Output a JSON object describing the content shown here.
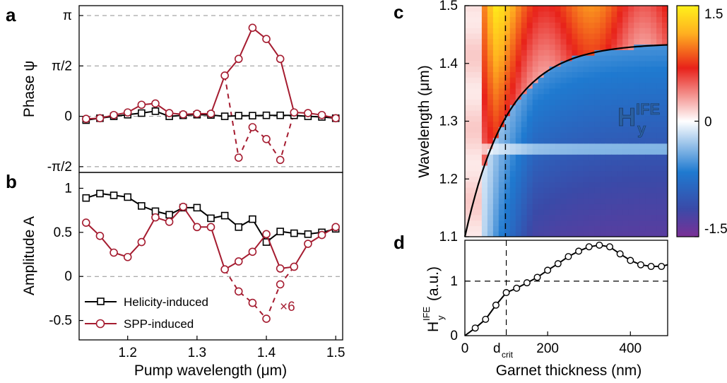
{
  "colors": {
    "helicity": "#000000",
    "spp": "#a51c30",
    "grid": "#909090"
  },
  "chart_data": [
    {
      "panel": "a",
      "type": "line",
      "ylabel": "Phase ψ",
      "y_ticks": [
        "π",
        "π/2",
        "0",
        "-π/2"
      ],
      "y_tick_values": [
        3.1416,
        1.5708,
        0,
        -1.5708
      ],
      "ylim": [
        -1.75,
        3.45
      ],
      "xlim": [
        1.13,
        1.51
      ],
      "series": [
        {
          "name": "Helicity-induced",
          "marker": "square",
          "x": [
            1.14,
            1.16,
            1.18,
            1.2,
            1.22,
            1.24,
            1.26,
            1.28,
            1.3,
            1.32,
            1.34,
            1.36,
            1.38,
            1.4,
            1.42,
            1.44,
            1.46,
            1.48,
            1.5
          ],
          "y": [
            -0.12,
            -0.06,
            0.0,
            0.05,
            0.1,
            0.16,
            0.0,
            0.03,
            0.05,
            0.04,
            0.0,
            0.02,
            0.02,
            0.03,
            0.03,
            0.03,
            0.0,
            -0.02,
            -0.06
          ]
        },
        {
          "name": "SPP-induced",
          "marker": "circle",
          "x": [
            1.14,
            1.16,
            1.18,
            1.2,
            1.22,
            1.24,
            1.26,
            1.28,
            1.3,
            1.32,
            1.34,
            1.36,
            1.38,
            1.4,
            1.42,
            1.44,
            1.46,
            1.48,
            1.5
          ],
          "y": [
            -0.08,
            -0.06,
            0.04,
            0.12,
            0.36,
            0.4,
            0.1,
            0.06,
            0.08,
            0.08,
            1.27,
            1.79,
            2.76,
            2.41,
            1.79,
            0.12,
            0.1,
            0.04,
            -0.06
          ]
        },
        {
          "name": "",
          "style": "dashed-branch",
          "x": [
            1.34,
            1.36,
            1.38,
            1.4,
            1.42,
            1.44
          ],
          "y": [
            1.27,
            -1.29,
            -0.34,
            -0.71,
            -1.36,
            0.12
          ]
        }
      ]
    },
    {
      "panel": "b",
      "type": "line",
      "ylabel": "Amplitude A",
      "y_ticks": [
        "1",
        "0.5",
        "0",
        "-0.5"
      ],
      "y_tick_values": [
        1,
        0.5,
        0,
        -0.5
      ],
      "ylim": [
        -0.72,
        1.18
      ],
      "xlabel": "Pump wavelength (μm)",
      "x_ticks": [
        "1.2",
        "1.3",
        "1.4",
        "1.5"
      ],
      "x_tick_values": [
        1.2,
        1.3,
        1.4,
        1.5
      ],
      "xlim": [
        1.13,
        1.51
      ],
      "annotation": "×6",
      "series": [
        {
          "name": "Helicity-induced",
          "marker": "square",
          "x": [
            1.14,
            1.16,
            1.18,
            1.2,
            1.22,
            1.24,
            1.26,
            1.28,
            1.3,
            1.32,
            1.34,
            1.36,
            1.38,
            1.4,
            1.42,
            1.44,
            1.46,
            1.48,
            1.5
          ],
          "y": [
            0.89,
            0.94,
            0.92,
            0.9,
            0.8,
            0.74,
            0.7,
            0.78,
            0.78,
            0.66,
            0.69,
            0.56,
            0.65,
            0.39,
            0.51,
            0.49,
            0.48,
            0.5,
            0.54
          ]
        },
        {
          "name": "SPP-induced",
          "marker": "circle",
          "x": [
            1.14,
            1.16,
            1.18,
            1.2,
            1.22,
            1.24,
            1.26,
            1.28,
            1.3,
            1.32,
            1.34,
            1.36,
            1.38,
            1.4,
            1.42,
            1.44,
            1.46,
            1.48,
            1.5
          ],
          "y": [
            0.61,
            0.46,
            0.27,
            0.22,
            0.39,
            0.67,
            0.62,
            0.79,
            0.56,
            0.56,
            0.08,
            0.17,
            0.28,
            0.48,
            0.09,
            0.11,
            0.37,
            0.47,
            0.56
          ]
        },
        {
          "name": "",
          "style": "dashed-branch",
          "x": [
            1.34,
            1.36,
            1.38,
            1.4,
            1.42,
            1.44
          ],
          "y": [
            0.08,
            -0.17,
            -0.3,
            -0.48,
            -0.09,
            0.11
          ]
        }
      ],
      "legend": [
        "Helicity-induced",
        "SPP-induced"
      ]
    },
    {
      "panel": "c",
      "type": "heatmap",
      "ylabel": "Wavelength (μm)",
      "y_ticks": [
        "1.1",
        "1.2",
        "1.3",
        "1.4",
        "1.5"
      ],
      "y_tick_values": [
        1.1,
        1.2,
        1.3,
        1.4,
        1.5
      ],
      "ylim": [
        1.1,
        1.5
      ],
      "xlim": [
        0,
        500
      ],
      "colorbar_ticks": [
        "1.5",
        "0",
        "-1.5"
      ],
      "colorbar_values": [
        1.5,
        0,
        -1.5
      ],
      "label_main": "H",
      "label_sup": "IFE",
      "label_sub": "y",
      "d_crit": 100
    },
    {
      "panel": "d",
      "type": "line",
      "ylabel_main": "H",
      "ylabel_sup": "IFE",
      "ylabel_sub": "y",
      "ylabel_unit": "(a.u.)",
      "y_ticks": [
        "1",
        "0"
      ],
      "y_tick_values": [
        1,
        0
      ],
      "ylim": [
        0,
        1.75
      ],
      "xlabel": "Garnet thickness (nm)",
      "x_ticks": [
        "0",
        "200",
        "400"
      ],
      "x_tick_values": [
        0,
        200,
        400
      ],
      "xlim": [
        0,
        490
      ],
      "dcrit_main": "d",
      "dcrit_sub": "crit",
      "series": [
        {
          "name": "",
          "x": [
            0,
            25,
            50,
            75,
            100,
            125,
            150,
            175,
            200,
            225,
            250,
            275,
            300,
            325,
            350,
            375,
            400,
            425,
            450,
            475,
            490
          ],
          "y": [
            0,
            0.14,
            0.3,
            0.56,
            0.79,
            0.87,
            0.97,
            1.07,
            1.2,
            1.32,
            1.45,
            1.55,
            1.63,
            1.66,
            1.63,
            1.5,
            1.38,
            1.3,
            1.27,
            1.27,
            1.3
          ]
        }
      ]
    }
  ]
}
